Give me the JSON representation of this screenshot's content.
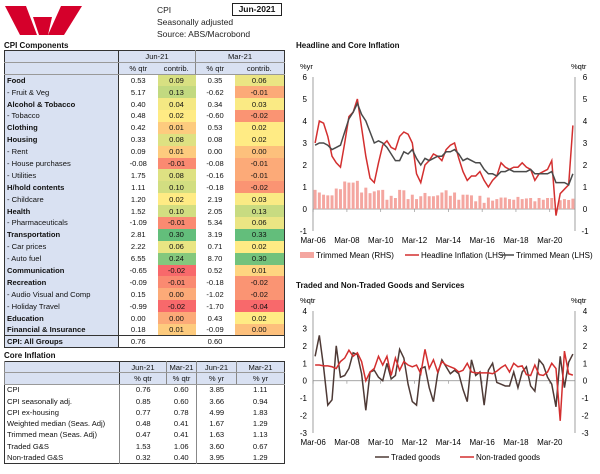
{
  "header": {
    "title": "CPI",
    "subtitle": "Seasonally adjusted",
    "source": "Source: ABS/Macrobond",
    "period": "Jun-2021",
    "brand_color": "#d5002b"
  },
  "components": {
    "title": "CPI Components",
    "periods": [
      "Jun-21",
      "Mar-21"
    ],
    "subheaders": [
      "% qtr",
      "contrib.",
      "% qtr",
      "contrib."
    ],
    "heat_colors": {
      "low": "#f8696b",
      "mid": "#ffeb84",
      "high": "#63be7b"
    },
    "rows": [
      {
        "label": "Food",
        "bold": true,
        "v": [
          "0.53",
          "0.09",
          "0.35",
          "0.06"
        ]
      },
      {
        "label": "- Fruit & Veg",
        "bold": false,
        "v": [
          "5.17",
          "0.13",
          "-0.62",
          "-0.01"
        ]
      },
      {
        "label": "Alcohol & Tobacco",
        "bold": true,
        "v": [
          "0.40",
          "0.04",
          "0.34",
          "0.03"
        ]
      },
      {
        "label": "- Tobacco",
        "bold": false,
        "v": [
          "0.48",
          "0.02",
          "-0.60",
          "-0.02"
        ]
      },
      {
        "label": "Clothing",
        "bold": true,
        "v": [
          "0.42",
          "0.01",
          "0.53",
          "0.02"
        ]
      },
      {
        "label": "Housing",
        "bold": true,
        "v": [
          "0.33",
          "0.08",
          "0.08",
          "0.02"
        ]
      },
      {
        "label": "- Rent",
        "bold": false,
        "v": [
          "0.09",
          "0.01",
          "0.00",
          "0.00"
        ]
      },
      {
        "label": "- House purchases",
        "bold": false,
        "v": [
          "-0.08",
          "-0.01",
          "-0.08",
          "-0.01"
        ]
      },
      {
        "label": "- Utilities",
        "bold": false,
        "v": [
          "1.75",
          "0.08",
          "-0.16",
          "-0.01"
        ]
      },
      {
        "label": "H/hold contents",
        "bold": true,
        "v": [
          "1.11",
          "0.10",
          "-0.18",
          "-0.02"
        ]
      },
      {
        "label": "- Childcare",
        "bold": false,
        "v": [
          "1.20",
          "0.02",
          "2.19",
          "0.03"
        ]
      },
      {
        "label": "Health",
        "bold": true,
        "v": [
          "1.52",
          "0.10",
          "2.05",
          "0.13"
        ]
      },
      {
        "label": "- Pharmaceuticals",
        "bold": false,
        "v": [
          "-1.09",
          "-0.01",
          "5.34",
          "0.06"
        ]
      },
      {
        "label": "Transportation",
        "bold": true,
        "v": [
          "2.81",
          "0.30",
          "3.19",
          "0.33"
        ]
      },
      {
        "label": "- Car prices",
        "bold": false,
        "v": [
          "2.22",
          "0.06",
          "0.71",
          "0.02"
        ]
      },
      {
        "label": "- Auto fuel",
        "bold": false,
        "v": [
          "6.55",
          "0.24",
          "8.70",
          "0.30"
        ]
      },
      {
        "label": "Communication",
        "bold": true,
        "v": [
          "-0.65",
          "-0.02",
          "0.52",
          "0.01"
        ]
      },
      {
        "label": "Recreation",
        "bold": true,
        "v": [
          "-0.09",
          "-0.01",
          "-0.18",
          "-0.02"
        ]
      },
      {
        "label": "- Audio Visual and Comp",
        "bold": false,
        "v": [
          "0.15",
          "0.00",
          "-1.02",
          "-0.02"
        ]
      },
      {
        "label": "- Holiday Travel",
        "bold": false,
        "v": [
          "-0.99",
          "-0.02",
          "-1.70",
          "-0.04"
        ]
      },
      {
        "label": "Education",
        "bold": true,
        "v": [
          "0.00",
          "0.00",
          "0.43",
          "0.02"
        ]
      },
      {
        "label": "Financial & Insurance",
        "bold": true,
        "v": [
          "0.18",
          "0.01",
          "-0.09",
          "0.00"
        ]
      }
    ],
    "total": {
      "label": "CPI: All Groups",
      "v": [
        "0.76",
        "",
        "0.60",
        ""
      ]
    }
  },
  "core": {
    "title": "Core Inflation",
    "periods": [
      "Jun-21",
      "Mar-21",
      "Jun-21",
      "Mar-21"
    ],
    "subheaders": [
      "% qtr",
      "% qtr",
      "% yr",
      "% yr"
    ],
    "rows": [
      {
        "label": "CPI",
        "v": [
          "0.76",
          "0.60",
          "3.85",
          "1.11"
        ]
      },
      {
        "label": "CPI seasonally adj.",
        "v": [
          "0.85",
          "0.60",
          "3.66",
          "0.94"
        ]
      },
      {
        "label": "CPI ex-housing",
        "v": [
          "0.77",
          "0.78",
          "4.99",
          "1.83"
        ]
      },
      {
        "label": "Weighted median (Seas. Adj)",
        "v": [
          "0.48",
          "0.41",
          "1.67",
          "1.29"
        ]
      },
      {
        "label": "Trimmed mean (Seas. Adj)",
        "v": [
          "0.47",
          "0.41",
          "1.63",
          "1.13"
        ]
      },
      {
        "label": "Traded G&S",
        "v": [
          "1.53",
          "1.06",
          "3.60",
          "0.67"
        ]
      },
      {
        "label": "Non-traded G&S",
        "v": [
          "0.32",
          "0.40",
          "3.95",
          "1.29"
        ]
      }
    ]
  },
  "chart_data": [
    {
      "type": "line",
      "title": "Headline and Core Inflation",
      "ylabel_left": "%yr",
      "ylabel_right": "%qtr",
      "ylim": [
        -1,
        6
      ],
      "yticks": [
        -1,
        0,
        1,
        2,
        3,
        4,
        5,
        6
      ],
      "x_start": "Mar-06",
      "x_end": "Jun-21",
      "frequency": "quarterly",
      "xtick_labels": [
        "Mar-06",
        "Mar-08",
        "Mar-10",
        "Mar-12",
        "Mar-14",
        "Mar-16",
        "Mar-18",
        "Mar-20"
      ],
      "grid": false,
      "legend": "bottom",
      "series": [
        {
          "name": "Trimmed Mean (RHS)",
          "kind": "bar",
          "axis": "right",
          "color": "#f4a6a0",
          "values": [
            0.87,
            0.75,
            0.65,
            0.62,
            0.62,
            0.93,
            0.9,
            1.25,
            1.2,
            1.2,
            1.28,
            0.75,
            0.97,
            0.72,
            0.8,
            0.85,
            0.87,
            0.42,
            0.6,
            0.5,
            0.87,
            0.85,
            0.45,
            0.65,
            0.45,
            0.58,
            0.73,
            0.58,
            0.58,
            0.62,
            0.75,
            0.85,
            0.6,
            0.75,
            0.42,
            0.65,
            0.65,
            0.62,
            0.35,
            0.6,
            0.28,
            0.52,
            0.38,
            0.45,
            0.52,
            0.52,
            0.45,
            0.42,
            0.55,
            0.45,
            0.48,
            0.5,
            0.35,
            0.5,
            0.42,
            0.5,
            0.5,
            -0.05,
            0.4,
            0.45,
            0.41,
            0.47
          ]
        },
        {
          "name": "Headline Inflation (LHS)",
          "kind": "line",
          "axis": "left",
          "color": "#d32f2f",
          "values": [
            3.0,
            4.0,
            3.9,
            3.3,
            2.4,
            2.1,
            1.9,
            3.0,
            4.2,
            4.4,
            5.0,
            3.7,
            2.4,
            1.4,
            1.2,
            2.1,
            2.9,
            3.1,
            2.8,
            2.7,
            3.3,
            3.5,
            3.4,
            3.0,
            1.6,
            1.2,
            2.0,
            2.2,
            2.5,
            2.4,
            2.2,
            2.7,
            2.9,
            3.0,
            2.3,
            1.7,
            1.3,
            1.5,
            1.5,
            1.7,
            1.3,
            1.0,
            1.3,
            1.5,
            2.1,
            1.9,
            1.8,
            1.9,
            1.9,
            2.1,
            1.9,
            1.8,
            1.3,
            1.6,
            1.7,
            1.8,
            2.2,
            -0.3,
            0.7,
            0.9,
            1.1,
            3.8
          ]
        },
        {
          "name": "Trimmed Mean (LHS)",
          "kind": "line",
          "axis": "left",
          "color": "#4a4a4a",
          "values": [
            2.9,
            3.0,
            3.0,
            2.9,
            2.7,
            2.8,
            2.9,
            3.5,
            4.1,
            4.4,
            4.8,
            4.3,
            4.0,
            3.5,
            3.0,
            3.1,
            3.0,
            2.8,
            2.5,
            2.2,
            2.2,
            2.6,
            2.5,
            2.7,
            2.3,
            2.0,
            2.3,
            2.2,
            2.3,
            2.4,
            2.4,
            2.6,
            2.6,
            2.7,
            2.5,
            2.2,
            2.3,
            2.2,
            2.1,
            2.1,
            1.8,
            1.6,
            1.6,
            1.5,
            1.7,
            1.7,
            1.8,
            1.7,
            1.7,
            1.7,
            1.7,
            1.8,
            1.6,
            1.6,
            1.6,
            1.6,
            1.7,
            1.2,
            1.2,
            1.2,
            1.1,
            1.6
          ]
        }
      ]
    },
    {
      "type": "line",
      "title": "Traded and Non-Traded Goods and Services",
      "ylabel_left": "%qtr",
      "ylabel_right": "%qtr",
      "ylim": [
        -3,
        4
      ],
      "yticks": [
        -3,
        -2,
        -1,
        0,
        1,
        2,
        3,
        4
      ],
      "x_start": "Mar-06",
      "x_end": "Jun-21",
      "frequency": "quarterly",
      "xtick_labels": [
        "Mar-06",
        "Mar-08",
        "Mar-10",
        "Mar-12",
        "Mar-14",
        "Mar-16",
        "Mar-18",
        "Mar-20"
      ],
      "grid": false,
      "legend": "bottom",
      "series": [
        {
          "name": "Traded goods",
          "kind": "line",
          "color": "#4e3a36",
          "values": [
            1.4,
            2.6,
            0.8,
            -1.4,
            -1.1,
            2.0,
            0.2,
            0.3,
            0.7,
            1.6,
            1.5,
            0.4,
            -1.7,
            0.5,
            0.6,
            0.2,
            0.0,
            1.0,
            0.1,
            0.3,
            1.8,
            1.3,
            -0.2,
            -1.2,
            -1.4,
            0.7,
            0.8,
            -0.4,
            -1.2,
            0.4,
            1.2,
            0.8,
            0.4,
            0.6,
            0.4,
            -0.5,
            -1.2,
            1.2,
            0.3,
            0.5,
            -1.4,
            0.6,
            1.0,
            -0.1,
            -0.2,
            -0.3,
            -0.3,
            0.5,
            -0.4,
            0.5,
            0.8,
            -0.3,
            -0.6,
            1.2,
            0.9,
            0.2,
            -0.2,
            -1.5,
            1.4,
            -0.4,
            1.06,
            1.53
          ]
        },
        {
          "name": "Non-traded goods",
          "kind": "line",
          "color": "#d32f2f",
          "values": [
            0.9,
            0.9,
            0.85,
            0.85,
            0.8,
            0.7,
            1.1,
            1.3,
            1.75,
            1.4,
            1.6,
            1.1,
            0.0,
            0.5,
            0.7,
            1.4,
            0.9,
            1.4,
            0.3,
            1.3,
            0.6,
            1.1,
            0.9,
            0.8,
            0.9,
            0.4,
            1.8,
            0.7,
            1.2,
            0.5,
            1.1,
            0.9,
            0.8,
            0.7,
            0.5,
            0.6,
            1.0,
            0.5,
            0.45,
            0.45,
            0.45,
            0.45,
            0.4,
            0.55,
            0.75,
            0.9,
            0.5,
            1.0,
            0.8,
            0.85,
            0.35,
            0.3,
            0.9,
            0.35,
            0.3,
            0.5,
            1.0,
            0.7,
            -2.3,
            1.7,
            0.4,
            0.32
          ]
        }
      ]
    }
  ]
}
